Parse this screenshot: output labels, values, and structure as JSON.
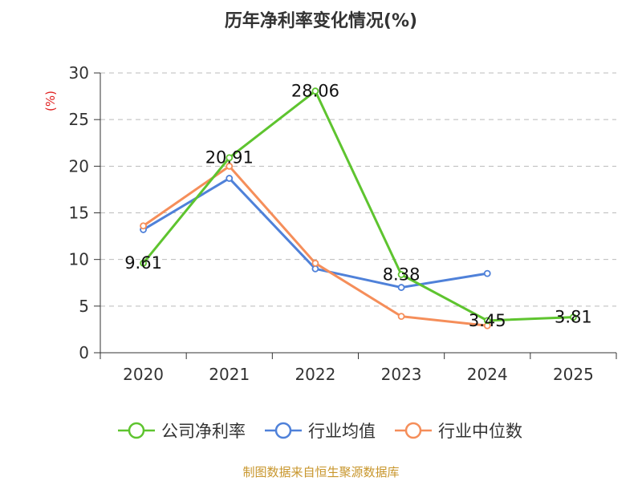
{
  "chart_data": {
    "type": "line",
    "title": "历年净利率变化情况(%)",
    "ylabel": "(%)",
    "categories": [
      "2020",
      "2021",
      "2022",
      "2023",
      "2024",
      "2025"
    ],
    "ylim": [
      0,
      30
    ],
    "yticks": [
      "0",
      "5",
      "10",
      "15",
      "20",
      "25",
      "30"
    ],
    "grid": true,
    "legend_position": "bottom",
    "series": [
      {
        "name": "公司净利率",
        "color": "#5ec42f",
        "values": [
          9.61,
          20.91,
          28.06,
          8.38,
          3.45,
          3.81
        ],
        "labels": [
          "9.61",
          "20.91",
          "28.06",
          "8.38",
          "3.45",
          "3.81"
        ]
      },
      {
        "name": "行业均值",
        "color": "#4f81d9",
        "values": [
          13.2,
          18.7,
          9.0,
          7.0,
          8.5,
          null
        ]
      },
      {
        "name": "行业中位数",
        "color": "#f58e5a",
        "values": [
          13.6,
          20.0,
          9.6,
          3.9,
          2.9,
          null
        ]
      }
    ],
    "unit_color": "#e02020"
  },
  "footer": {
    "source": "制图数据来自恒生聚源数据库",
    "color": "#c8962c"
  }
}
